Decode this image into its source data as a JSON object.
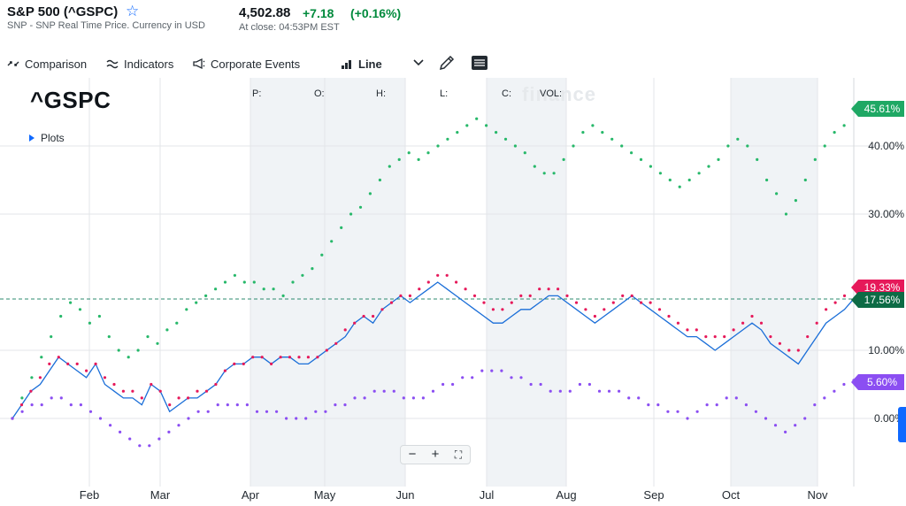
{
  "header": {
    "title": "S&P 500 (^GSPC)",
    "subtitle": "SNP - SNP Real Time Price. Currency in USD",
    "price": "4,502.88",
    "change": "+7.18",
    "change_pct": "(+0.16%)",
    "at_close": "At close: 04:53PM EST",
    "star_icon": "star-icon"
  },
  "toolbar": {
    "comparison": "Comparison",
    "indicators": "Indicators",
    "corporate_events": "Corporate Events",
    "chart_type": "Line"
  },
  "chart": {
    "symbol": "^GSPC",
    "plots_label": "Plots",
    "ohlc": {
      "p": "P:",
      "o": "O:",
      "h": "H:",
      "l": "L:",
      "c": "C:",
      "vol": "VOL:"
    },
    "watermark": "finance",
    "zoom": {
      "minus": "−",
      "plus": "+",
      "fullscreen": "⛶"
    },
    "colors": {
      "main": "#1a6ed8",
      "green": "#27b86a",
      "red": "#e6195a",
      "purple": "#8b4ef2",
      "grid": "#e3e6e9",
      "shade": "#f0f3f6"
    }
  },
  "chart_data": {
    "type": "line",
    "x_labels": [
      "Feb",
      "Mar",
      "Apr",
      "May",
      "Jun",
      "Jul",
      "Aug",
      "Sep",
      "Oct",
      "Nov"
    ],
    "y_ticks": [
      "40.00%",
      "30.00%",
      "10.00%",
      "0.00%"
    ],
    "ylim": [
      -7,
      48
    ],
    "end_labels": [
      "45.61%",
      "19.33%",
      "17.56%",
      "5.60%"
    ],
    "series": [
      {
        "name": "^GSPC",
        "style": "line",
        "color": "#1a6ed8",
        "values": [
          0,
          2,
          4,
          5,
          7,
          9,
          8,
          7,
          6,
          8,
          5,
          4,
          3,
          3,
          2,
          5,
          4,
          1,
          2,
          3,
          3,
          4,
          5,
          7,
          8,
          8,
          9,
          9,
          8,
          9,
          9,
          8,
          8,
          9,
          10,
          11,
          12,
          14,
          15,
          14,
          16,
          17,
          18,
          17,
          18,
          19,
          20,
          19,
          18,
          17,
          16,
          15,
          14,
          14,
          15,
          16,
          16,
          17,
          18,
          18,
          17,
          16,
          15,
          14,
          15,
          16,
          17,
          18,
          17,
          16,
          15,
          14,
          13,
          12,
          12,
          11,
          10,
          11,
          12,
          13,
          14,
          13,
          11,
          10,
          9,
          8,
          10,
          12,
          14,
          15,
          16,
          17.56
        ]
      },
      {
        "name": "",
        "style": "dots",
        "color": "#27b86a",
        "values": [
          0,
          3,
          6,
          9,
          12,
          15,
          17,
          16,
          14,
          15,
          12,
          10,
          9,
          10,
          12,
          11,
          13,
          14,
          16,
          17,
          18,
          19,
          20,
          21,
          20,
          20,
          19,
          19,
          18,
          20,
          21,
          22,
          24,
          26,
          28,
          30,
          31,
          33,
          35,
          37,
          38,
          39,
          38,
          39,
          40,
          41,
          42,
          43,
          44,
          43,
          42,
          41,
          40,
          39,
          37,
          36,
          36,
          38,
          40,
          42,
          43,
          42,
          41,
          40,
          39,
          38,
          37,
          36,
          35,
          34,
          35,
          36,
          37,
          38,
          40,
          41,
          40,
          38,
          35,
          33,
          30,
          32,
          35,
          38,
          40,
          42,
          43,
          45.61
        ]
      },
      {
        "name": "",
        "style": "dots",
        "color": "#e6195a",
        "values": [
          0,
          2,
          4,
          6,
          8,
          9,
          8,
          8,
          7,
          8,
          6,
          5,
          4,
          4,
          3,
          5,
          4,
          2,
          3,
          3,
          4,
          4,
          5,
          7,
          8,
          8,
          9,
          9,
          8,
          9,
          9,
          9,
          9,
          9,
          10,
          11,
          13,
          14,
          15,
          15,
          16,
          17,
          18,
          18,
          19,
          20,
          21,
          21,
          20,
          19,
          18,
          17,
          16,
          16,
          17,
          18,
          18,
          19,
          19,
          19,
          18,
          17,
          16,
          15,
          16,
          17,
          18,
          18,
          17,
          17,
          16,
          15,
          14,
          13,
          13,
          12,
          12,
          12,
          13,
          14,
          15,
          14,
          12,
          11,
          10,
          10,
          12,
          14,
          16,
          17,
          18,
          19.33
        ]
      },
      {
        "name": "",
        "style": "dots",
        "color": "#8b4ef2",
        "values": [
          0,
          1,
          2,
          2,
          3,
          3,
          2,
          2,
          1,
          0,
          -1,
          -2,
          -3,
          -4,
          -4,
          -3,
          -2,
          -1,
          0,
          1,
          1,
          2,
          2,
          2,
          2,
          1,
          1,
          1,
          0,
          0,
          0,
          1,
          1,
          2,
          2,
          3,
          3,
          4,
          4,
          4,
          3,
          3,
          3,
          4,
          5,
          5,
          6,
          6,
          7,
          7,
          7,
          6,
          6,
          5,
          5,
          4,
          4,
          4,
          5,
          5,
          4,
          4,
          4,
          3,
          3,
          2,
          2,
          1,
          1,
          0,
          1,
          2,
          2,
          3,
          3,
          2,
          1,
          0,
          -1,
          -2,
          -1,
          0,
          2,
          3,
          4,
          5,
          5.6
        ]
      }
    ]
  }
}
